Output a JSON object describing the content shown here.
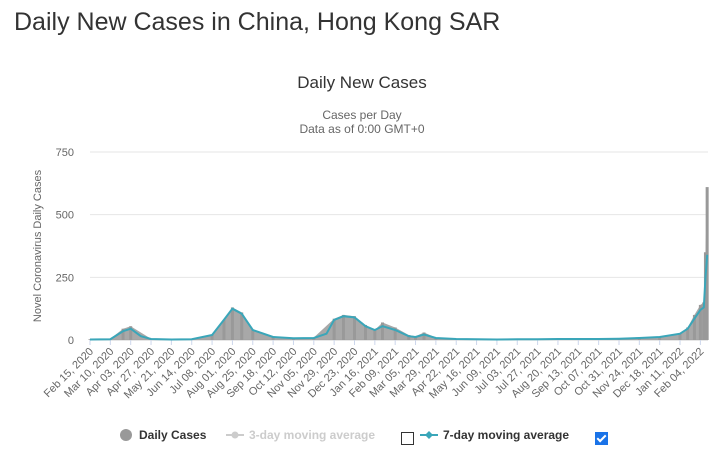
{
  "page": {
    "title": "Daily New Cases in China, Hong Kong SAR"
  },
  "chart_data": {
    "type": "bar",
    "title": "Daily New Cases",
    "subtitle": [
      "Cases per Day",
      "Data as of 0:00 GMT+0"
    ],
    "ylabel": "Novel Coronavirus Daily Cases",
    "xlabel": "",
    "ylim": [
      0,
      750
    ],
    "yticks": [
      0,
      250,
      500,
      750
    ],
    "grid": true,
    "x_tick_labels": [
      "Feb 15, 2020",
      "Mar 10, 2020",
      "Apr 03, 2020",
      "Apr 27, 2020",
      "May 21, 2020",
      "Jun 14, 2020",
      "Jul 08, 2020",
      "Aug 01, 2020",
      "Aug 25, 2020",
      "Sep 18, 2020",
      "Oct 12, 2020",
      "Nov 05, 2020",
      "Nov 29, 2020",
      "Dec 23, 2020",
      "Jan 16, 2021",
      "Feb 09, 2021",
      "Mar 05, 2021",
      "Mar 29, 2021",
      "Apr 22, 2021",
      "May 16, 2021",
      "Jun 09, 2021",
      "Jul 03, 2021",
      "Jul 27, 2021",
      "Aug 20, 2021",
      "Sep 13, 2021",
      "Oct 07, 2021",
      "Oct 31, 2021",
      "Nov 24, 2021",
      "Dec 18, 2021",
      "Jan 11, 2022",
      "Feb 04, 2022"
    ],
    "series": [
      {
        "name": "Daily Cases",
        "color": "#999999",
        "x": [
          "Feb 15, 2020",
          "Mar 10, 2020",
          "Mar 25, 2020",
          "Apr 03, 2020",
          "Apr 27, 2020",
          "May 21, 2020",
          "Jun 14, 2020",
          "Jul 08, 2020",
          "Jul 22, 2020",
          "Aug 01, 2020",
          "Aug 12, 2020",
          "Aug 25, 2020",
          "Sep 18, 2020",
          "Oct 12, 2020",
          "Nov 05, 2020",
          "Nov 29, 2020",
          "Dec 10, 2020",
          "Dec 23, 2020",
          "Jan 05, 2021",
          "Jan 16, 2021",
          "Jan 25, 2021",
          "Feb 09, 2021",
          "Feb 25, 2021",
          "Mar 05, 2021",
          "Mar 15, 2021",
          "Mar 29, 2021",
          "Apr 22, 2021",
          "May 16, 2021",
          "Jun 09, 2021",
          "Jul 03, 2021",
          "Jul 27, 2021",
          "Aug 20, 2021",
          "Sep 13, 2021",
          "Oct 07, 2021",
          "Oct 31, 2021",
          "Nov 24, 2021",
          "Dec 18, 2021",
          "Jan 11, 2022",
          "Jan 20, 2022",
          "Jan 28, 2022",
          "Feb 04, 2022",
          "Feb 08, 2022",
          "Feb 10, 2022",
          "Feb 12, 2022"
        ],
        "values": [
          3,
          5,
          45,
          55,
          5,
          2,
          3,
          20,
          80,
          130,
          110,
          40,
          15,
          8,
          10,
          85,
          100,
          95,
          60,
          40,
          70,
          50,
          20,
          15,
          30,
          10,
          5,
          3,
          2,
          3,
          3,
          4,
          4,
          5,
          5,
          8,
          10,
          25,
          50,
          100,
          140,
          150,
          350,
          610
        ]
      },
      {
        "name": "3-day moving average",
        "color": "#cccccc",
        "visible": false,
        "x": [],
        "values": []
      },
      {
        "name": "7-day moving average",
        "color": "#3aa6b9",
        "visible": true,
        "x": [
          "Feb 15, 2020",
          "Mar 10, 2020",
          "Mar 25, 2020",
          "Apr 03, 2020",
          "Apr 15, 2020",
          "Apr 27, 2020",
          "May 21, 2020",
          "Jun 14, 2020",
          "Jul 08, 2020",
          "Jul 22, 2020",
          "Aug 01, 2020",
          "Aug 12, 2020",
          "Aug 25, 2020",
          "Sep 18, 2020",
          "Oct 12, 2020",
          "Nov 05, 2020",
          "Nov 20, 2020",
          "Nov 29, 2020",
          "Dec 10, 2020",
          "Dec 23, 2020",
          "Jan 05, 2021",
          "Jan 16, 2021",
          "Jan 25, 2021",
          "Feb 09, 2021",
          "Feb 25, 2021",
          "Mar 05, 2021",
          "Mar 15, 2021",
          "Mar 29, 2021",
          "Apr 22, 2021",
          "May 16, 2021",
          "Jun 09, 2021",
          "Jul 03, 2021",
          "Jul 27, 2021",
          "Aug 20, 2021",
          "Sep 13, 2021",
          "Oct 07, 2021",
          "Oct 31, 2021",
          "Nov 24, 2021",
          "Dec 18, 2021",
          "Jan 11, 2022",
          "Jan 20, 2022",
          "Jan 28, 2022",
          "Feb 04, 2022",
          "Feb 08, 2022",
          "Feb 10, 2022",
          "Feb 12, 2022"
        ],
        "values": [
          2,
          3,
          35,
          45,
          15,
          4,
          2,
          3,
          20,
          80,
          125,
          105,
          40,
          12,
          7,
          8,
          25,
          80,
          95,
          90,
          55,
          40,
          55,
          40,
          15,
          12,
          22,
          8,
          4,
          3,
          2,
          3,
          3,
          4,
          4,
          4,
          5,
          8,
          12,
          25,
          45,
          85,
          120,
          130,
          250,
          340
        ]
      }
    ],
    "legend_placement": "bottom"
  },
  "legend": [
    {
      "label": "Daily Cases",
      "color": "#999999",
      "marker": "circle",
      "enabled": true
    },
    {
      "label": "3-day moving average",
      "color": "#cccccc",
      "marker": "line-dot",
      "enabled": false
    },
    {
      "label": "7-day moving average",
      "color": "#3aa6b9",
      "marker": "line-diamond",
      "enabled": true
    }
  ]
}
